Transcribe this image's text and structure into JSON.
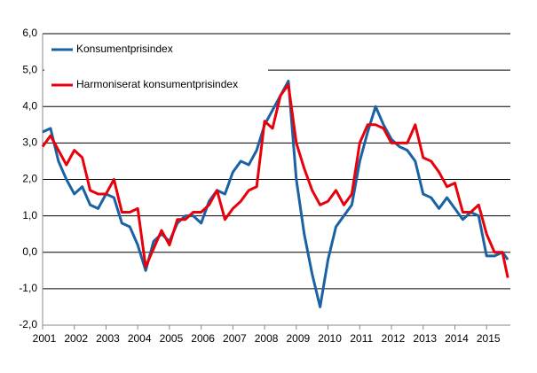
{
  "chart_data": {
    "type": "line",
    "x": [
      2001,
      2001.25,
      2001.5,
      2001.75,
      2002,
      2002.25,
      2002.5,
      2002.75,
      2003,
      2003.25,
      2003.5,
      2003.75,
      2004,
      2004.25,
      2004.5,
      2004.75,
      2005,
      2005.25,
      2005.5,
      2005.75,
      2006,
      2006.25,
      2006.5,
      2006.75,
      2007,
      2007.25,
      2007.5,
      2007.75,
      2008,
      2008.25,
      2008.5,
      2008.75,
      2009,
      2009.25,
      2009.5,
      2009.75,
      2010,
      2010.25,
      2010.5,
      2010.75,
      2011,
      2011.25,
      2011.5,
      2011.75,
      2012,
      2012.25,
      2012.5,
      2012.75,
      2013,
      2013.25,
      2013.5,
      2013.75,
      2014,
      2014.25,
      2014.5,
      2014.75,
      2015,
      2015.25,
      2015.5,
      2015.67
    ],
    "series": [
      {
        "name": "Konsumentprisindex",
        "color": "#1a62a3",
        "values": [
          3.3,
          3.4,
          2.5,
          2.0,
          1.6,
          1.8,
          1.3,
          1.2,
          1.6,
          1.5,
          0.8,
          0.7,
          0.2,
          -0.5,
          0.3,
          0.5,
          0.3,
          0.8,
          1.0,
          1.0,
          0.8,
          1.4,
          1.7,
          1.6,
          2.2,
          2.5,
          2.4,
          2.8,
          3.5,
          3.9,
          4.3,
          4.7,
          2.0,
          0.5,
          -0.6,
          -1.5,
          -0.2,
          0.7,
          1.0,
          1.3,
          2.5,
          3.3,
          4.0,
          3.5,
          3.1,
          2.9,
          2.8,
          2.5,
          1.6,
          1.5,
          1.2,
          1.5,
          1.2,
          0.9,
          1.1,
          1.0,
          -0.1,
          -0.1,
          0.0,
          -0.2
        ]
      },
      {
        "name": "Harmoniserat konsumentprisindex",
        "color": "#e8000b",
        "values": [
          2.9,
          3.2,
          2.8,
          2.4,
          2.8,
          2.6,
          1.7,
          1.6,
          1.6,
          2.0,
          1.1,
          1.1,
          1.2,
          -0.4,
          0.1,
          0.6,
          0.2,
          0.9,
          0.9,
          1.1,
          1.1,
          1.3,
          1.7,
          0.9,
          1.2,
          1.4,
          1.7,
          1.8,
          3.6,
          3.4,
          4.3,
          4.6,
          3.0,
          2.3,
          1.7,
          1.3,
          1.4,
          1.7,
          1.3,
          1.6,
          3.0,
          3.5,
          3.5,
          3.4,
          3.0,
          3.0,
          3.0,
          3.5,
          2.6,
          2.5,
          2.2,
          1.8,
          1.9,
          1.1,
          1.1,
          1.3,
          0.5,
          0.0,
          0.0,
          -0.7
        ]
      }
    ],
    "xlim": [
      2001,
      2015.75
    ],
    "xticks": [
      2001,
      2002,
      2003,
      2004,
      2005,
      2006,
      2007,
      2008,
      2009,
      2010,
      2011,
      2012,
      2013,
      2014,
      2015
    ],
    "ylim": [
      -2,
      6
    ],
    "yticks": [
      {
        "value": -2,
        "label": "-2,0"
      },
      {
        "value": -1,
        "label": "-1,0"
      },
      {
        "value": 0,
        "label": "0,0"
      },
      {
        "value": 1,
        "label": "1,0"
      },
      {
        "value": 2,
        "label": "2,0"
      },
      {
        "value": 3,
        "label": "3,0"
      },
      {
        "value": 4,
        "label": "4,0"
      },
      {
        "value": 5,
        "label": "5,0"
      },
      {
        "value": 6,
        "label": "6,0"
      }
    ],
    "grid": true
  }
}
